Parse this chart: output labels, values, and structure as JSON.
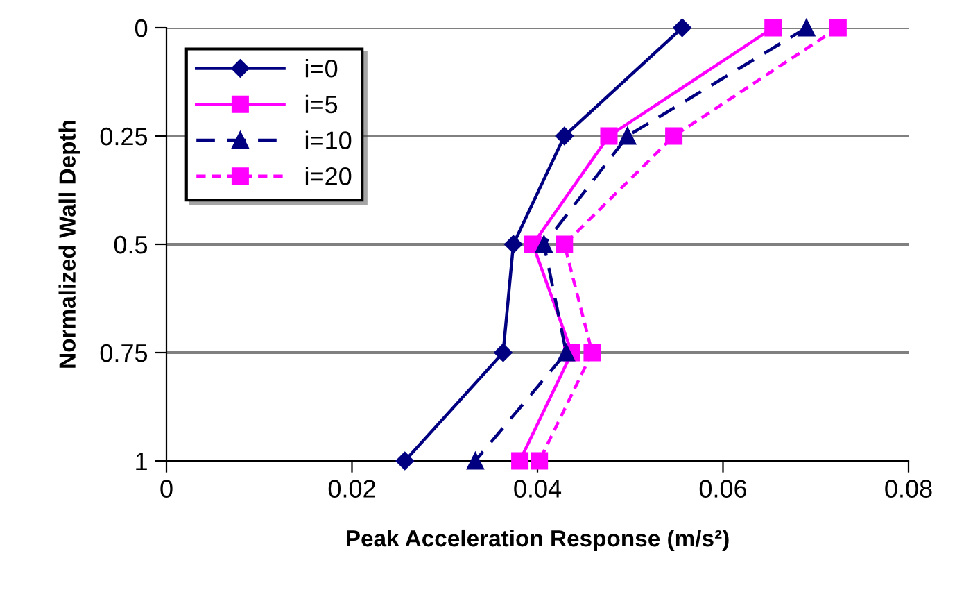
{
  "chart_data": {
    "type": "line",
    "xlabel": "Peak Acceleration Response (m/s²)",
    "ylabel": "Normalized Wall Depth",
    "xlim": [
      0,
      0.08
    ],
    "xticks": [
      0,
      0.02,
      0.04,
      0.06,
      0.08
    ],
    "ylim": [
      1,
      0
    ],
    "yticks": [
      0,
      0.25,
      0.5,
      0.75,
      1
    ],
    "grid": "y",
    "legend": "top left",
    "series": [
      {
        "name": "i=0",
        "color": "#000080",
        "marker": "diamond",
        "line_style": "solid",
        "x": [
          0.0556,
          0.0429,
          0.0374,
          0.0363,
          0.0257
        ],
        "values": [
          0,
          0.25,
          0.5,
          0.75,
          1
        ]
      },
      {
        "name": "i=5",
        "color": "#ff00ff",
        "marker": "square",
        "line_style": "solid",
        "x": [
          0.0654,
          0.0477,
          0.0395,
          0.0437,
          0.0381
        ],
        "values": [
          0,
          0.25,
          0.5,
          0.75,
          1
        ]
      },
      {
        "name": "i=10",
        "color": "#000080",
        "marker": "triangle",
        "line_style": "dashed",
        "x": [
          0.069,
          0.0497,
          0.0407,
          0.0431,
          0.0333
        ],
        "values": [
          0,
          0.25,
          0.5,
          0.75,
          1
        ]
      },
      {
        "name": "i=20",
        "color": "#ff00ff",
        "marker": "square",
        "line_style": "dotted",
        "x": [
          0.0724,
          0.0547,
          0.0429,
          0.0459,
          0.0402
        ],
        "values": [
          0,
          0.25,
          0.5,
          0.75,
          1
        ]
      }
    ]
  }
}
